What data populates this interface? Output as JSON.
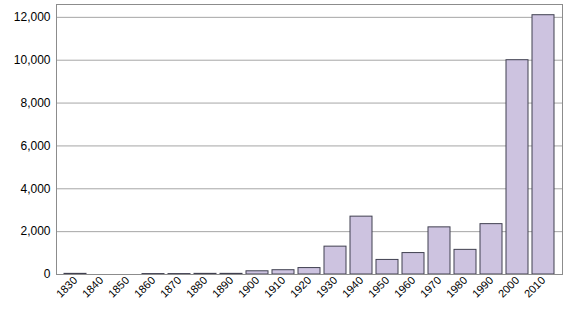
{
  "chart_data": {
    "type": "bar",
    "categories": [
      "1830",
      "1840",
      "1850",
      "1860",
      "1870",
      "1880",
      "1890",
      "1900",
      "1910",
      "1920",
      "1930",
      "1940",
      "1950",
      "1960",
      "1970",
      "1980",
      "1990",
      "2000",
      "2010"
    ],
    "values": [
      30,
      0,
      0,
      20,
      20,
      30,
      30,
      150,
      200,
      300,
      1300,
      2700,
      680,
      1000,
      2200,
      1150,
      2350,
      10000,
      12100
    ],
    "color": "#cdc3e0",
    "ylim": [
      0,
      12600
    ],
    "yticks": [
      0,
      2000,
      4000,
      6000,
      8000,
      10000,
      12000
    ],
    "grid": true
  }
}
